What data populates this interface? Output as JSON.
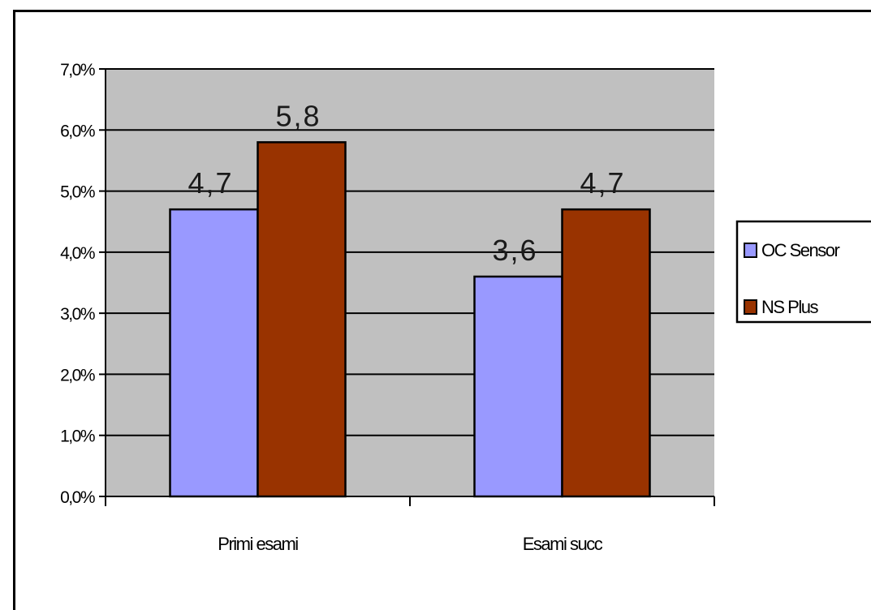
{
  "chart_data": {
    "type": "bar",
    "title": "",
    "xlabel": "",
    "ylabel": "",
    "categories": [
      "Primi esami",
      "Esami succ"
    ],
    "series": [
      {
        "name": "OC Sensor",
        "values": [
          4.7,
          3.6
        ],
        "color": "#9999ff",
        "data_labels": [
          "4,7",
          "3,6"
        ]
      },
      {
        "name": "NS Plus",
        "values": [
          5.8,
          4.7
        ],
        "color": "#993300",
        "data_labels": [
          "5,8",
          "4,7"
        ]
      }
    ],
    "ylim": [
      0,
      7
    ],
    "y_ticks": [
      "0,0%",
      "1,0%",
      "2,0%",
      "3,0%",
      "4,0%",
      "5,0%",
      "6,0%",
      "7,0%"
    ],
    "grid": true,
    "plot_background": "#c0c0c0",
    "legend_position": "right"
  }
}
